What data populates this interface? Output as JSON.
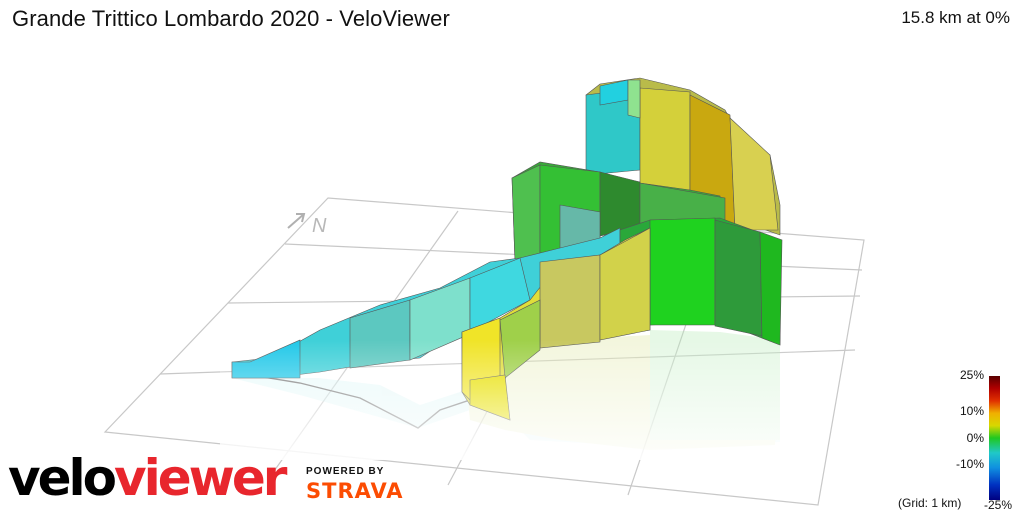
{
  "header": {
    "title": "Grande Trittico Lombardo 2020 - VeloViewer",
    "distance_readout": "15.8 km at 0%"
  },
  "map": {
    "north_label": "N",
    "north_arrow_icon": "north-arrow-icon",
    "grid_note": "(Grid: 1 km)"
  },
  "gradient_scale": {
    "labels": [
      "25%",
      "10%",
      "0%",
      "-10%",
      "-25%"
    ]
  },
  "branding": {
    "logo_velo": "velo",
    "logo_viewer": "viewer",
    "powered_by": "POWERED BY",
    "strava": "STRAVA"
  },
  "colors": {
    "cyan": "#2fd6dc",
    "teal": "#5fb8b0",
    "green": "#1fd21f",
    "dark_green": "#2a9a3a",
    "yellow": "#e6e03a",
    "olive": "#b9b552",
    "brand_red": "#e8262d",
    "strava_orange": "#fc4c02"
  }
}
